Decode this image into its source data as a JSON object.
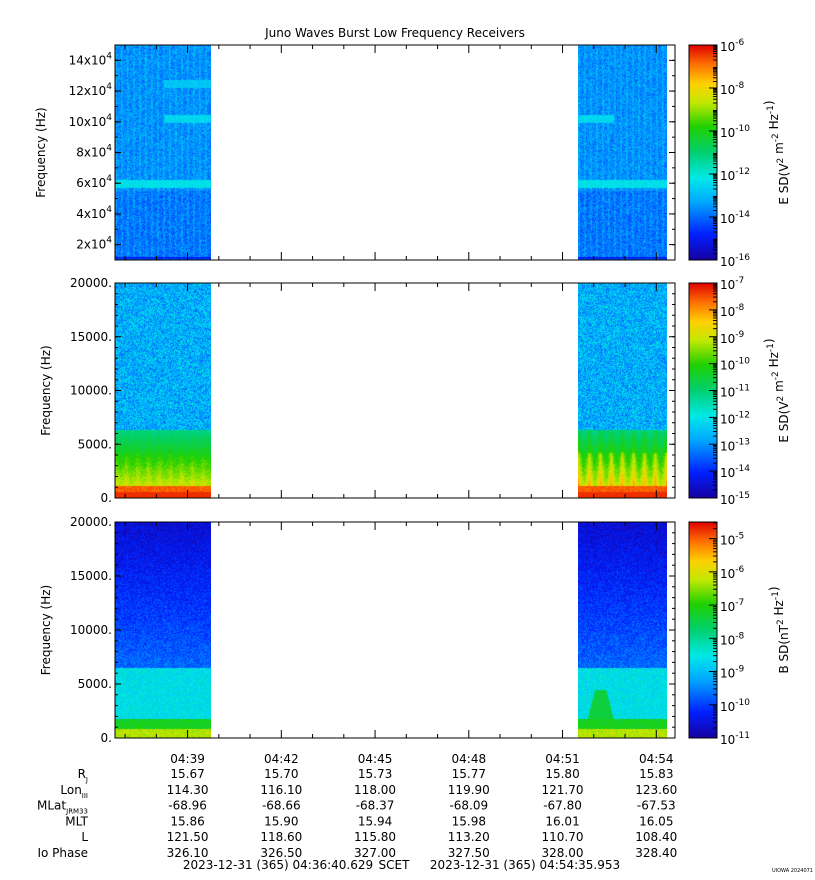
{
  "chart_data": {
    "type": "heatmap",
    "title": "Juno Waves Burst Low Frequency Receivers",
    "x_range": [
      "04:36:40.629",
      "04:54:35.953"
    ],
    "x_major_ticks": [
      "04:39",
      "04:42",
      "04:45",
      "04:48",
      "04:51",
      "04:54"
    ],
    "data_segments": [
      {
        "start": "04:36:40",
        "end": "04:39:45"
      },
      {
        "start": "04:51:30",
        "end": "04:54:20"
      }
    ],
    "panels": [
      {
        "name": "panel-e-high",
        "ylabel": "Frequency (Hz)",
        "ylim": [
          10000,
          150000
        ],
        "yticks": [
          {
            "value": 20000,
            "mant": "2x10",
            "exp": "4"
          },
          {
            "value": 40000,
            "mant": "4x10",
            "exp": "4"
          },
          {
            "value": 60000,
            "mant": "6x10",
            "exp": "4"
          },
          {
            "value": 80000,
            "mant": "8x10",
            "exp": "4"
          },
          {
            "value": 100000,
            "mant": "10x10",
            "exp": "4"
          },
          {
            "value": 120000,
            "mant": "12x10",
            "exp": "4"
          },
          {
            "value": 140000,
            "mant": "14x10",
            "exp": "4"
          }
        ],
        "colorbar": {
          "label": "E SD(V2 m-2 Hz-1)",
          "log_min": -16,
          "log_max": -6,
          "ticks": [
            -6,
            -8,
            -10,
            -12,
            -14,
            -16
          ]
        },
        "bands": [
          {
            "name": "emission-60k",
            "freq": 60000,
            "level": -12.3
          },
          {
            "name": "emission-100k",
            "freq": 102000,
            "level": -12.5
          },
          {
            "name": "emission-125k",
            "freq": 125000,
            "level": -12.8
          }
        ]
      },
      {
        "name": "panel-e-low",
        "ylabel": "Frequency (Hz)",
        "ylim": [
          0,
          20000
        ],
        "yticks": [
          {
            "value": 0,
            "label": "0."
          },
          {
            "value": 5000,
            "label": "5000."
          },
          {
            "value": 10000,
            "label": "10000."
          },
          {
            "value": 15000,
            "label": "15000."
          },
          {
            "value": 20000,
            "label": "20000."
          }
        ],
        "colorbar": {
          "label": "E SD(V2 m-2 Hz-1)",
          "log_min": -15,
          "log_max": -7,
          "ticks": [
            -7,
            -8,
            -9,
            -10,
            -11,
            -12,
            -13,
            -14,
            -15
          ]
        },
        "cutoff_hz": 6400
      },
      {
        "name": "panel-b",
        "ylabel": "Frequency (Hz)",
        "ylim": [
          0,
          20000
        ],
        "yticks": [
          {
            "value": 0,
            "label": "0."
          },
          {
            "value": 5000,
            "label": "5000."
          },
          {
            "value": 10000,
            "label": "10000."
          },
          {
            "value": 15000,
            "label": "15000."
          },
          {
            "value": 20000,
            "label": "20000."
          }
        ],
        "colorbar": {
          "label": "B SD(nT2 Hz-1)",
          "log_min": -11,
          "log_max": -4.5,
          "ticks": [
            -5,
            -6,
            -7,
            -8,
            -9,
            -10,
            -11
          ]
        },
        "cutoff_hz": 6500
      }
    ],
    "ephemeris": {
      "rows": [
        {
          "name": "RJ",
          "base": "R",
          "sub": "J",
          "values": [
            "15.67",
            "15.70",
            "15.73",
            "15.77",
            "15.80",
            "15.83"
          ]
        },
        {
          "name": "LonIII",
          "base": "Lon",
          "sub": "III",
          "values": [
            "114.30",
            "116.10",
            "118.00",
            "119.90",
            "121.70",
            "123.60"
          ]
        },
        {
          "name": "MLatJRM33",
          "base": "MLat",
          "sub": "JRM33",
          "values": [
            "-68.96",
            "-68.66",
            "-68.37",
            "-68.09",
            "-67.80",
            "-67.53"
          ]
        },
        {
          "name": "MLT",
          "base": "MLT",
          "sub": "",
          "values": [
            "15.86",
            "15.90",
            "15.94",
            "15.98",
            "16.01",
            "16.05"
          ]
        },
        {
          "name": "L",
          "base": "L",
          "sub": "",
          "values": [
            "121.50",
            "118.60",
            "115.80",
            "113.20",
            "110.70",
            "108.40"
          ]
        },
        {
          "name": "Io Phase",
          "base": "Io Phase",
          "sub": "",
          "values": [
            "326.10",
            "326.50",
            "327.00",
            "327.50",
            "328.00",
            "328.40"
          ]
        }
      ]
    },
    "footer": {
      "start": "2023-12-31 (365) 04:36:40.629",
      "scet": "SCET",
      "end": "2023-12-31 (365) 04:54:35.953"
    },
    "stamp": "UIOWA 2024071"
  }
}
